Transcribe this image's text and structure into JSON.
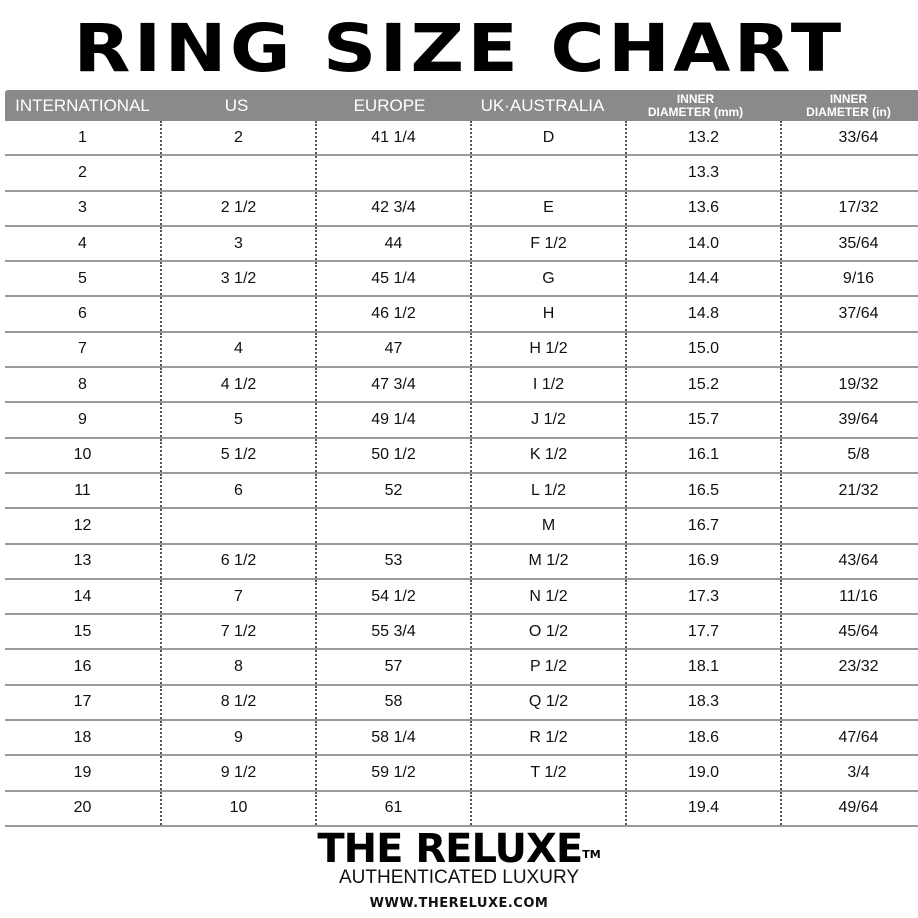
{
  "title": "RING SIZE CHART",
  "table": {
    "headers": [
      {
        "line1": "INTERNATIONAL"
      },
      {
        "line1": "US"
      },
      {
        "line1": "EUROPE"
      },
      {
        "line1": "UK·AUSTRALIA"
      },
      {
        "line1": "INNER",
        "line2": "DIAMETER (mm)"
      },
      {
        "line1": "INNER",
        "line2": "DIAMETER (in)"
      }
    ],
    "rows": [
      [
        "1",
        "2",
        "41 1/4",
        "D",
        "13.2",
        "33/64"
      ],
      [
        "2",
        "",
        "",
        "",
        "13.3",
        ""
      ],
      [
        "3",
        "2 1/2",
        "42 3/4",
        "E",
        "13.6",
        "17/32"
      ],
      [
        "4",
        "3",
        "44",
        "F 1/2",
        "14.0",
        "35/64"
      ],
      [
        "5",
        "3 1/2",
        "45 1/4",
        "G",
        "14.4",
        "9/16"
      ],
      [
        "6",
        "",
        "46 1/2",
        "H",
        "14.8",
        "37/64"
      ],
      [
        "7",
        "4",
        "47",
        "H 1/2",
        "15.0",
        ""
      ],
      [
        "8",
        "4 1/2",
        "47 3/4",
        "I 1/2",
        "15.2",
        "19/32"
      ],
      [
        "9",
        "5",
        "49 1/4",
        "J 1/2",
        "15.7",
        "39/64"
      ],
      [
        "10",
        "5 1/2",
        "50 1/2",
        "K 1/2",
        "16.1",
        "5/8"
      ],
      [
        "11",
        "6",
        "52",
        "L 1/2",
        "16.5",
        "21/32"
      ],
      [
        "12",
        "",
        "",
        "M",
        "16.7",
        ""
      ],
      [
        "13",
        "6 1/2",
        "53",
        "M 1/2",
        "16.9",
        "43/64"
      ],
      [
        "14",
        "7",
        "54 1/2",
        "N 1/2",
        "17.3",
        "11/16"
      ],
      [
        "15",
        "7 1/2",
        "55 3/4",
        "O 1/2",
        "17.7",
        "45/64"
      ],
      [
        "16",
        "8",
        "57",
        "P 1/2",
        "18.1",
        "23/32"
      ],
      [
        "17",
        "8 1/2",
        "58",
        "Q 1/2",
        "18.3",
        ""
      ],
      [
        "18",
        "9",
        "58 1/4",
        "R 1/2",
        "18.6",
        "47/64"
      ],
      [
        "19",
        "9 1/2",
        "59 1/2",
        "T 1/2",
        "19.0",
        "3/4"
      ],
      [
        "20",
        "10",
        "61",
        "",
        "19.4",
        "49/64"
      ]
    ]
  },
  "footer": {
    "brand": "THE RELUXE",
    "trademark": "TM",
    "tagline": "AUTHENTICATED LUXURY",
    "url": "WWW.THERELUXE.COM"
  },
  "colors": {
    "header_bg": "#8a8a8a",
    "header_text": "#ffffff",
    "row_rule": "#9a9a9a"
  }
}
